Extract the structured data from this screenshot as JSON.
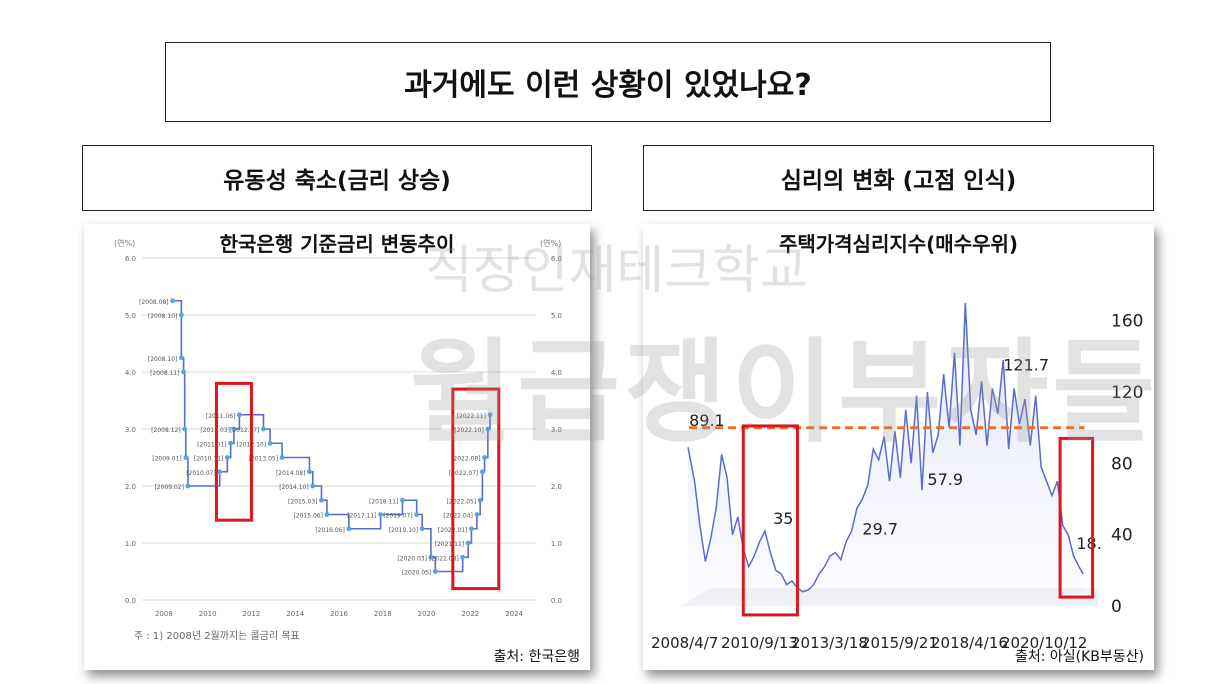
{
  "page": {
    "title": "과거에도 이런 상황이 있었나요?",
    "left_header": "유동성 축소(금리 상승)",
    "right_header": "심리의 변화 (고점 인식)",
    "watermark_line1": "직장인재테크학교",
    "watermark_line2": "월급쟁이부자들"
  },
  "left_panel": {
    "source": "출처: 한국은행",
    "note": "주 : 1) 2008년 2월까지는 콜금리 목표"
  },
  "right_panel": {
    "source": "출처: 아실(KB부동산)"
  },
  "colors": {
    "line_blue": "#5a6bd0",
    "highlight_red": "#e0141c",
    "dashed_orange": "#e8702a",
    "dot_blue": "#5aa2e0"
  },
  "chart_data": [
    {
      "type": "line",
      "title": "한국은행 기준금리 변동추이",
      "ylabel": "(연%)",
      "y2label": "(연%)",
      "ylim": [
        0,
        6
      ],
      "yticks": [
        "0.0",
        "1.0",
        "2.0",
        "3.0",
        "4.0",
        "5.0",
        "6.0"
      ],
      "xlim": [
        2007,
        2025
      ],
      "xticks": [
        "2008",
        "2010",
        "2012",
        "2014",
        "2016",
        "2018",
        "2020",
        "2022",
        "2024"
      ],
      "series": [
        {
          "step": true,
          "points": [
            {
              "x": 2008.4,
              "y": 5.25,
              "label": "2008.08"
            },
            {
              "x": 2008.8,
              "y": 5.0,
              "label": "2008.10"
            },
            {
              "x": 2008.8,
              "y": 4.25,
              "label": "2008.10"
            },
            {
              "x": 2008.9,
              "y": 4.0,
              "label": "2008.11"
            },
            {
              "x": 2008.95,
              "y": 3.0,
              "label": "2008.12"
            },
            {
              "x": 2009.0,
              "y": 2.5,
              "label": "2009.01"
            },
            {
              "x": 2009.1,
              "y": 2.0,
              "label": "2009.02"
            },
            {
              "x": 2010.55,
              "y": 2.25,
              "label": "2010.07"
            },
            {
              "x": 2010.9,
              "y": 2.5,
              "label": "2010.11"
            },
            {
              "x": 2011.05,
              "y": 2.75,
              "label": "2011.01"
            },
            {
              "x": 2011.2,
              "y": 3.0,
              "label": "2011.03"
            },
            {
              "x": 2011.45,
              "y": 3.25,
              "label": "2011.06"
            },
            {
              "x": 2012.55,
              "y": 3.0,
              "label": "2012.07"
            },
            {
              "x": 2012.85,
              "y": 2.75,
              "label": "2012.10"
            },
            {
              "x": 2013.4,
              "y": 2.5,
              "label": "2013.05"
            },
            {
              "x": 2014.65,
              "y": 2.25,
              "label": "2014.08"
            },
            {
              "x": 2014.8,
              "y": 2.0,
              "label": "2014.10"
            },
            {
              "x": 2015.2,
              "y": 1.75,
              "label": "2015.03"
            },
            {
              "x": 2015.45,
              "y": 1.5,
              "label": "2015.06"
            },
            {
              "x": 2016.45,
              "y": 1.25,
              "label": "2016.06"
            },
            {
              "x": 2017.9,
              "y": 1.5,
              "label": "2017.11"
            },
            {
              "x": 2018.9,
              "y": 1.75,
              "label": "2018.11"
            },
            {
              "x": 2019.55,
              "y": 1.5,
              "label": "2019.07"
            },
            {
              "x": 2019.8,
              "y": 1.25,
              "label": "2019.10"
            },
            {
              "x": 2020.2,
              "y": 0.75,
              "label": "2020.03"
            },
            {
              "x": 2020.4,
              "y": 0.5,
              "label": "2020.05"
            },
            {
              "x": 2021.65,
              "y": 0.75,
              "label": "2021.08"
            },
            {
              "x": 2021.9,
              "y": 1.0,
              "label": "2021.11"
            },
            {
              "x": 2022.05,
              "y": 1.25,
              "label": "2022.01"
            },
            {
              "x": 2022.3,
              "y": 1.5,
              "label": "2022.04"
            },
            {
              "x": 2022.45,
              "y": 1.75,
              "label": "2022.05"
            },
            {
              "x": 2022.55,
              "y": 2.25,
              "label": "2022.07"
            },
            {
              "x": 2022.65,
              "y": 2.5,
              "label": "2022.08"
            },
            {
              "x": 2022.8,
              "y": 3.0,
              "label": "2022.10"
            },
            {
              "x": 2022.9,
              "y": 3.25,
              "label": "2022.11"
            }
          ]
        }
      ],
      "highlights": [
        {
          "x_from": 2010.4,
          "x_to": 2012.0,
          "y_from": 1.4,
          "y_to": 3.8
        },
        {
          "x_from": 2021.2,
          "x_to": 2023.3,
          "y_from": 0.2,
          "y_to": 3.7
        }
      ]
    },
    {
      "type": "area",
      "title": "주택가격심리지수(매수우위)",
      "ylim": [
        0,
        175
      ],
      "yticks": [
        "0",
        "40",
        "80",
        "120",
        "160"
      ],
      "xticks": [
        "2008/4/7",
        "2010/9/13",
        "2013/3/18",
        "2015/9/21",
        "2018/4/16",
        "2020/10/12"
      ],
      "reference_line": 100,
      "annotations": [
        {
          "x": 2008.3,
          "y": 101,
          "text": "89.1"
        },
        {
          "x": 2011.4,
          "y": 46,
          "text": "35"
        },
        {
          "x": 2014.7,
          "y": 40,
          "text": "29.7"
        },
        {
          "x": 2017.1,
          "y": 68,
          "text": "57.9"
        },
        {
          "x": 2019.9,
          "y": 132,
          "text": "121.7"
        },
        {
          "x": 2022.6,
          "y": 32,
          "text": "18."
        }
      ],
      "series": [
        {
          "x": [
            2008.26,
            2008.5,
            2008.7,
            2008.9,
            2009.1,
            2009.3,
            2009.5,
            2009.7,
            2009.9,
            2010.1,
            2010.3,
            2010.5,
            2010.7,
            2010.9,
            2011.1,
            2011.3,
            2011.5,
            2011.7,
            2011.9,
            2012.1,
            2012.3,
            2012.5,
            2012.7,
            2012.9,
            2013.1,
            2013.3,
            2013.5,
            2013.7,
            2013.9,
            2014.1,
            2014.3,
            2014.5,
            2014.7,
            2014.9,
            2015.1,
            2015.3,
            2015.5,
            2015.7,
            2015.9,
            2016.1,
            2016.3,
            2016.5,
            2016.7,
            2016.9,
            2017.1,
            2017.3,
            2017.5,
            2017.7,
            2017.9,
            2018.1,
            2018.3,
            2018.5,
            2018.7,
            2018.9,
            2019.1,
            2019.3,
            2019.5,
            2019.7,
            2019.9,
            2020.1,
            2020.3,
            2020.5,
            2020.7,
            2020.9,
            2021.1,
            2021.3,
            2021.5,
            2021.7,
            2021.9,
            2022.1,
            2022.3,
            2022.5,
            2022.7,
            2022.85
          ],
          "values": [
            89,
            70,
            45,
            25,
            38,
            55,
            85,
            72,
            40,
            50,
            32,
            22,
            28,
            36,
            42,
            30,
            20,
            18,
            12,
            14,
            10,
            8,
            9,
            12,
            18,
            22,
            28,
            30,
            26,
            36,
            42,
            55,
            60,
            68,
            88,
            82,
            95,
            70,
            98,
            72,
            110,
            80,
            118,
            65,
            120,
            86,
            96,
            130,
            100,
            142,
            90,
            170,
            110,
            96,
            126,
            90,
            122,
            108,
            138,
            88,
            122,
            102,
            116,
            90,
            118,
            78,
            70,
            62,
            70,
            45,
            40,
            28,
            22,
            18
          ]
        }
      ],
      "highlights": [
        {
          "x_from": 2010.3,
          "x_to": 2012.3,
          "y_from": -5,
          "y_to": 101
        },
        {
          "x_from": 2022.0,
          "x_to": 2023.2,
          "y_from": 5,
          "y_to": 94
        }
      ]
    }
  ]
}
